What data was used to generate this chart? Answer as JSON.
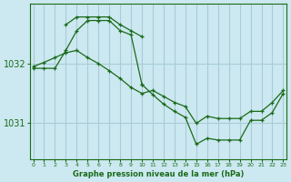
{
  "title": "Graphe pression niveau de la mer (hPa)",
  "bg_color": "#cce8f0",
  "grid_color": "#a8ccd8",
  "line_color": "#1a6b1a",
  "x_ticks": [
    0,
    1,
    2,
    3,
    4,
    5,
    6,
    7,
    8,
    9,
    10,
    11,
    12,
    13,
    14,
    15,
    16,
    17,
    18,
    19,
    20,
    21,
    22,
    23
  ],
  "y_ticks": [
    1031,
    1032
  ],
  "ylim": [
    1030.4,
    1033.0
  ],
  "xlim": [
    -0.3,
    23.3
  ],
  "series": [
    {
      "x": [
        0,
        1,
        2,
        3,
        4,
        5,
        6,
        7,
        8,
        9,
        10,
        11,
        12,
        13,
        14,
        15,
        16,
        17,
        18,
        19,
        20,
        21,
        22,
        23
      ],
      "y": [
        1031.95,
        1032.02,
        1032.1,
        1032.18,
        1032.22,
        1032.1,
        1032.0,
        1031.88,
        1031.75,
        1031.6,
        1031.5,
        1031.55,
        1031.45,
        1031.35,
        1031.28,
        1031.0,
        1031.12,
        1031.08,
        1031.08,
        1031.08,
        1031.2,
        1031.2,
        1031.35,
        1031.55
      ]
    },
    {
      "x": [
        0,
        1,
        2,
        3,
        4,
        5,
        6,
        7,
        8,
        9,
        10
      ],
      "y": [
        1031.92,
        1031.92,
        1031.92,
        1032.22,
        1032.55,
        1032.72,
        1032.72,
        1032.72,
        1032.55,
        1032.48,
        1031.65
      ]
    },
    {
      "x": [
        3,
        4,
        5,
        6,
        7,
        8,
        9,
        10
      ],
      "y": [
        1032.65,
        1032.78,
        1032.78,
        1032.78,
        1032.78,
        1032.65,
        1032.55,
        1032.45
      ]
    },
    {
      "x": [
        10,
        11,
        12,
        13,
        14,
        15,
        16,
        17,
        18,
        19,
        20,
        21,
        22,
        23
      ],
      "y": [
        1031.65,
        1031.48,
        1031.32,
        1031.2,
        1031.1,
        1030.65,
        1030.75,
        1030.72,
        1030.72,
        1030.72,
        1031.05,
        1031.05,
        1031.18,
        1031.5
      ]
    }
  ]
}
